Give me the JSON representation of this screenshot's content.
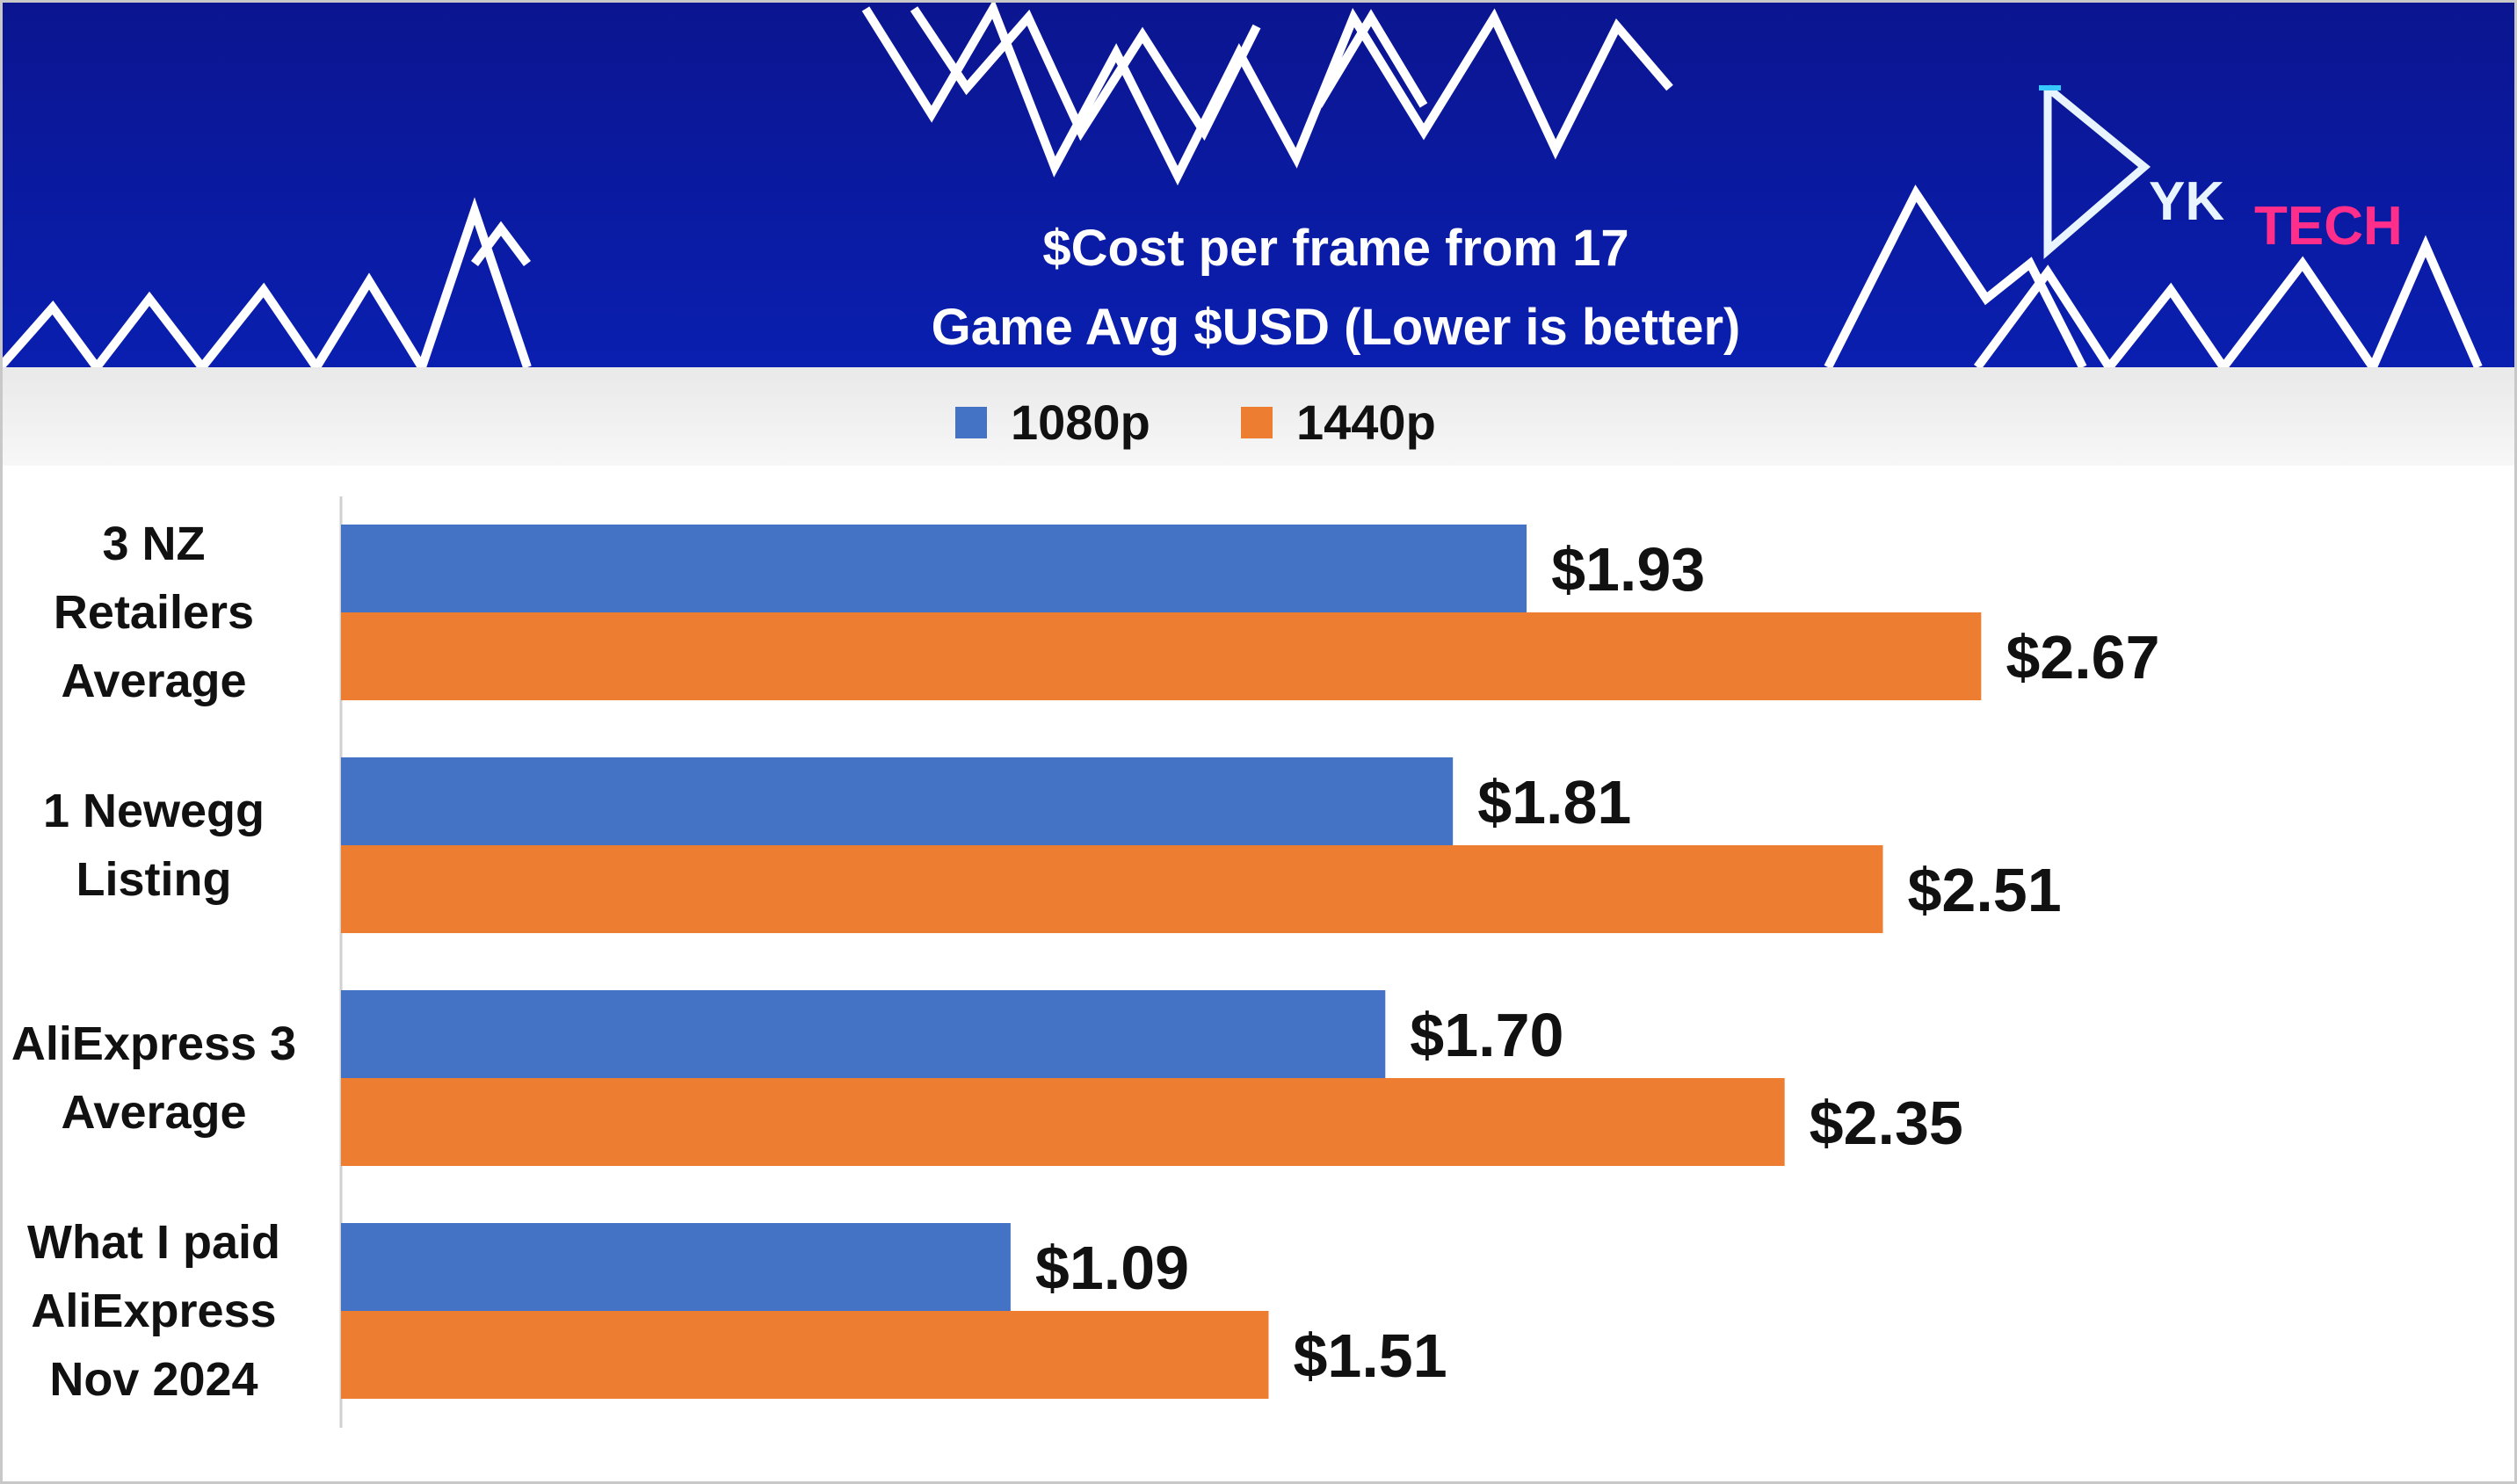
{
  "chart_data": {
    "type": "bar",
    "orientation": "horizontal",
    "title_lines": [
      "$Cost per frame from 17",
      "Game Avg $USD (Lower is better)"
    ],
    "categories": [
      [
        "3 NZ",
        "Retailers",
        "Average"
      ],
      [
        "1 Newegg",
        "Listing"
      ],
      [
        "AliExpress 3",
        "Average"
      ],
      [
        "What I paid",
        "AliExpress",
        "Nov 2024"
      ]
    ],
    "series": [
      {
        "name": "1080p",
        "color": "#4472C4",
        "values": [
          1.93,
          1.81,
          1.7,
          1.09
        ],
        "labels": [
          "$1.93",
          "$1.81",
          "$1.70",
          "$1.09"
        ]
      },
      {
        "name": "1440p",
        "color": "#ED7D31",
        "values": [
          2.67,
          2.51,
          2.35,
          1.51
        ],
        "labels": [
          "$2.67",
          "$2.51",
          "$2.35",
          "$1.51"
        ]
      }
    ],
    "xlim": [
      0,
      3.0
    ],
    "legend_position": "top",
    "grid": false
  },
  "header": {
    "background_color": "#0A1A9A",
    "logo_letters": "YK",
    "logo_text": "TECH",
    "logo_color": "#FF2E8A",
    "logo_icon": "play-triangle-icon"
  }
}
